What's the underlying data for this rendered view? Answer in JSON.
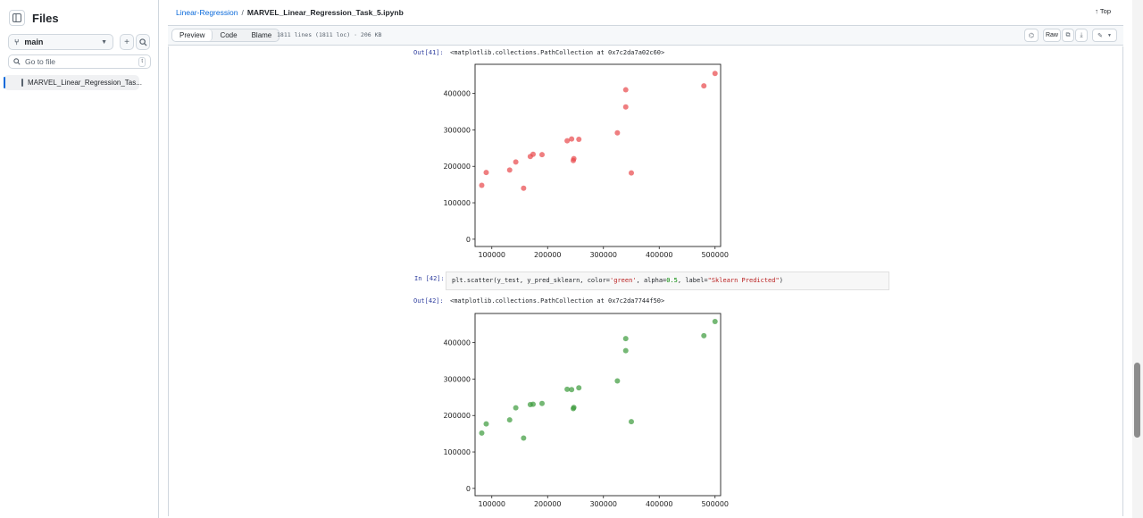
{
  "sidebar": {
    "title": "Files",
    "branch": "main",
    "goto_placeholder": "Go to file",
    "goto_shortcut": "t",
    "file_item": "MARVEL_Linear_Regression_Tas..."
  },
  "breadcrumb": {
    "repo": "Linear-Regression",
    "separator": "/",
    "file": "MARVEL_Linear_Regression_Task_5.ipynb"
  },
  "top_label": "Top",
  "tabs": [
    "Preview",
    "Code",
    "Blame"
  ],
  "file_meta": "1811 lines (1811 loc) · 206 KB",
  "raw_label": "Raw",
  "cells": {
    "out41_prompt": "Out[41]:",
    "out41_text": "<matplotlib.collections.PathCollection at 0x7c2da7a02c60>",
    "in42_prompt": "In [42]:",
    "code_a": "plt.scatter(y_test, y_pred_sklearn, color=",
    "code_str1": "'green'",
    "code_b": ", alpha=",
    "code_num": "0.5",
    "code_c": ", label=",
    "code_str2": "\"Sklearn Predicted\"",
    "code_d": ")",
    "out42_prompt": "Out[42]:",
    "out42_text": "<matplotlib.collections.PathCollection at 0x7c2da7744f50>"
  },
  "colors": {
    "red": "#e8474a",
    "green": "#3a9a3a",
    "link": "#0969da"
  },
  "chart_data": [
    {
      "type": "scatter",
      "color": "red",
      "xlim": [
        70000,
        510000
      ],
      "ylim": [
        -20000,
        480000
      ],
      "xticks": [
        100000,
        200000,
        300000,
        400000,
        500000
      ],
      "yticks": [
        0,
        100000,
        200000,
        300000,
        400000
      ],
      "xtick_labels": [
        "100000",
        "200000",
        "300000",
        "400000",
        "500000"
      ],
      "ytick_labels": [
        "0",
        "100000",
        "200000",
        "300000",
        "400000"
      ],
      "x": [
        82000,
        90000,
        132000,
        143000,
        157000,
        169000,
        174000,
        190000,
        235000,
        243000,
        246000,
        247000,
        256000,
        325000,
        340000,
        340000,
        350000,
        480000,
        500000
      ],
      "y": [
        148000,
        183000,
        190000,
        212000,
        140000,
        227000,
        233000,
        232000,
        270000,
        275000,
        216000,
        221000,
        274000,
        292000,
        410000,
        363000,
        182000,
        421000,
        455000
      ]
    },
    {
      "type": "scatter",
      "color": "green",
      "xlim": [
        70000,
        510000
      ],
      "ylim": [
        -20000,
        480000
      ],
      "xticks": [
        100000,
        200000,
        300000,
        400000,
        500000
      ],
      "yticks": [
        0,
        100000,
        200000,
        300000,
        400000
      ],
      "xtick_labels": [
        "100000",
        "200000",
        "300000",
        "400000",
        "500000"
      ],
      "ytick_labels": [
        "0",
        "100000",
        "200000",
        "300000",
        "400000"
      ],
      "x": [
        82000,
        90000,
        132000,
        143000,
        157000,
        169000,
        174000,
        190000,
        235000,
        243000,
        246000,
        247000,
        256000,
        325000,
        340000,
        340000,
        350000,
        480000,
        500000
      ],
      "y": [
        152000,
        177000,
        188000,
        221000,
        138000,
        230000,
        231000,
        233000,
        272000,
        271000,
        219000,
        222000,
        276000,
        295000,
        411000,
        378000,
        183000,
        419000,
        458000
      ]
    }
  ]
}
